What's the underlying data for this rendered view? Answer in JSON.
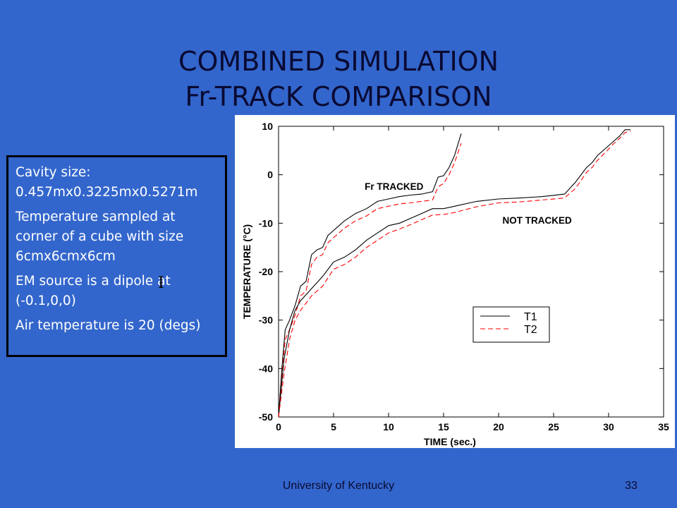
{
  "slide": {
    "title_line1": "COMBINED SIMULATION",
    "title_line2": "Fr-TRACK COMPARISON",
    "info": [
      "Cavity size: 0.457mx0.3225mx0.5271m",
      "Temperature sampled at corner of a cube with size 6cmx6cmx6cm",
      "EM source is a dipole at (-0.1,0,0)",
      "Air temperature is 20 (degs)"
    ],
    "footer_text": "University of Kentucky",
    "page_number": "33",
    "colors": {
      "background": "#3366cc",
      "title": "#0a0a33",
      "info_text": "#ffffff",
      "series_t1": "#000000",
      "series_t2": "#ff0000"
    }
  },
  "chart_data": {
    "type": "line",
    "xlabel": "TIME (sec.)",
    "ylabel": "TEMPERATURE (°C)",
    "xlim": [
      0,
      35
    ],
    "ylim": [
      -50,
      10
    ],
    "xticks": [
      0,
      5,
      10,
      15,
      20,
      25,
      30,
      35
    ],
    "yticks": [
      10,
      0,
      -10,
      -20,
      -30,
      -40,
      -50
    ],
    "legend_position": "center-right",
    "annotations": [
      {
        "text": "Fr TRACKED",
        "x": 10.5,
        "y": -3.1
      },
      {
        "text": "NOT TRACKED",
        "x": 23.5,
        "y": -10.1
      }
    ],
    "series": [
      {
        "name": "T1",
        "group": "Fr TRACKED",
        "color": "#000000",
        "dash": "solid",
        "x": [
          0,
          0.3,
          0.6,
          1,
          1.5,
          2,
          2.5,
          3,
          3.5,
          4,
          4.5,
          5,
          5.5,
          6,
          7,
          8,
          9,
          10,
          11,
          12,
          13,
          14,
          14.5,
          15,
          15.5,
          16,
          16.6
        ],
        "y": [
          -50,
          -40,
          -32,
          -30,
          -27,
          -23,
          -22,
          -16.5,
          -15.5,
          -15,
          -12.5,
          -11.5,
          -10.5,
          -9.5,
          -8,
          -7,
          -5.5,
          -5,
          -4.5,
          -4.2,
          -4,
          -3.5,
          -0.5,
          -0.2,
          1.5,
          4,
          8.5
        ]
      },
      {
        "name": "T2",
        "group": "Fr TRACKED",
        "color": "#ff0000",
        "dash": "dashed",
        "x": [
          0,
          0.3,
          0.6,
          1,
          1.5,
          2,
          2.5,
          3,
          3.5,
          4,
          4.5,
          5,
          5.5,
          6,
          7,
          8,
          9,
          10,
          11,
          12,
          13,
          14,
          14.5,
          15,
          15.5,
          16,
          16.6
        ],
        "y": [
          -50,
          -42,
          -34,
          -32,
          -29,
          -25,
          -24,
          -18.5,
          -17,
          -16.5,
          -14,
          -13,
          -12,
          -11,
          -9.5,
          -8.5,
          -7,
          -6.5,
          -6,
          -5.8,
          -5.5,
          -5.2,
          -2.5,
          -1.8,
          0,
          2.5,
          6.5
        ]
      },
      {
        "name": "T1",
        "group": "NOT TRACKED",
        "color": "#000000",
        "dash": "solid",
        "x": [
          0,
          0.5,
          1,
          1.5,
          2,
          3,
          4,
          5,
          6,
          7,
          8,
          9,
          10,
          11,
          12,
          13,
          14,
          15,
          16,
          18,
          20,
          22,
          24,
          26,
          27,
          28,
          28.5,
          29,
          30,
          30.5,
          31,
          31.5,
          32
        ],
        "y": [
          -50,
          -38,
          -32,
          -28,
          -26,
          -23.5,
          -21,
          -18,
          -17,
          -15.5,
          -13.5,
          -12,
          -10.5,
          -10,
          -9,
          -8,
          -7,
          -7,
          -6.5,
          -5.5,
          -5,
          -4.8,
          -4.5,
          -4,
          -1.5,
          1.5,
          2.5,
          4,
          6,
          7,
          8,
          9.3,
          9.3
        ]
      },
      {
        "name": "T2",
        "group": "NOT TRACKED",
        "color": "#ff0000",
        "dash": "dashed",
        "x": [
          0,
          0.5,
          1,
          1.5,
          2,
          3,
          4,
          5,
          6,
          7,
          8,
          9,
          10,
          11,
          12,
          13,
          14,
          15,
          16,
          18,
          20,
          22,
          24,
          26,
          27,
          28,
          28.5,
          29,
          30,
          30.5,
          31,
          31.5,
          32
        ],
        "y": [
          -50,
          -41,
          -34,
          -30,
          -28,
          -25,
          -23,
          -19.5,
          -18.5,
          -17,
          -15,
          -13.5,
          -12,
          -11.2,
          -10.3,
          -9.3,
          -8.3,
          -8.2,
          -7.8,
          -6.6,
          -5.8,
          -5.6,
          -5.2,
          -4.8,
          -2.8,
          0.5,
          1.5,
          3,
          5.3,
          6.5,
          7.5,
          8.7,
          9
        ]
      }
    ]
  }
}
